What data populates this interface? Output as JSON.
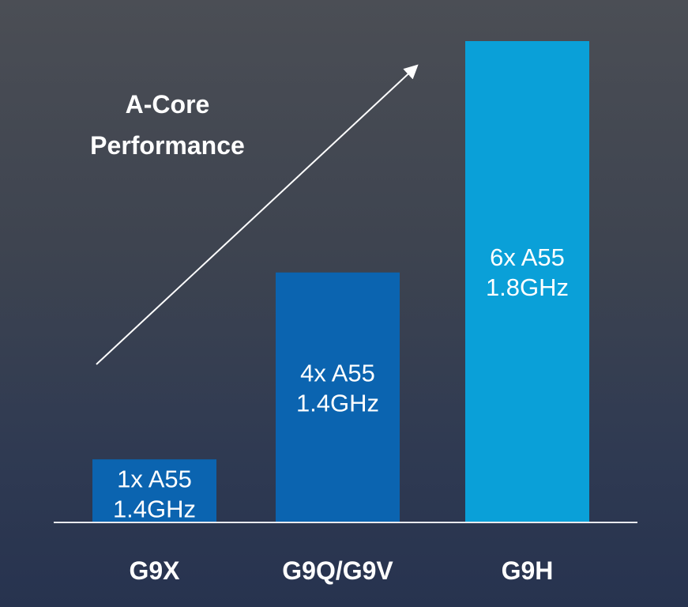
{
  "chart_data": {
    "type": "bar",
    "categories": [
      "G9X",
      "G9Q/G9V",
      "G9H"
    ],
    "values": [
      1.4,
      5.6,
      10.8
    ],
    "bar_labels": [
      [
        "1x A55",
        "1.4GHz"
      ],
      [
        "4x A55",
        "1.4GHz"
      ],
      [
        "6x A55",
        "1.8GHz"
      ]
    ],
    "bar_colors": [
      "#0b64b0",
      "#0b64b0",
      "#0aa0d8"
    ],
    "annotation": [
      "A-Core",
      "Performance"
    ],
    "title": "",
    "xlabel": "",
    "ylabel": "",
    "ylim": [
      0,
      10.8
    ],
    "grid": false,
    "legend": "none"
  }
}
